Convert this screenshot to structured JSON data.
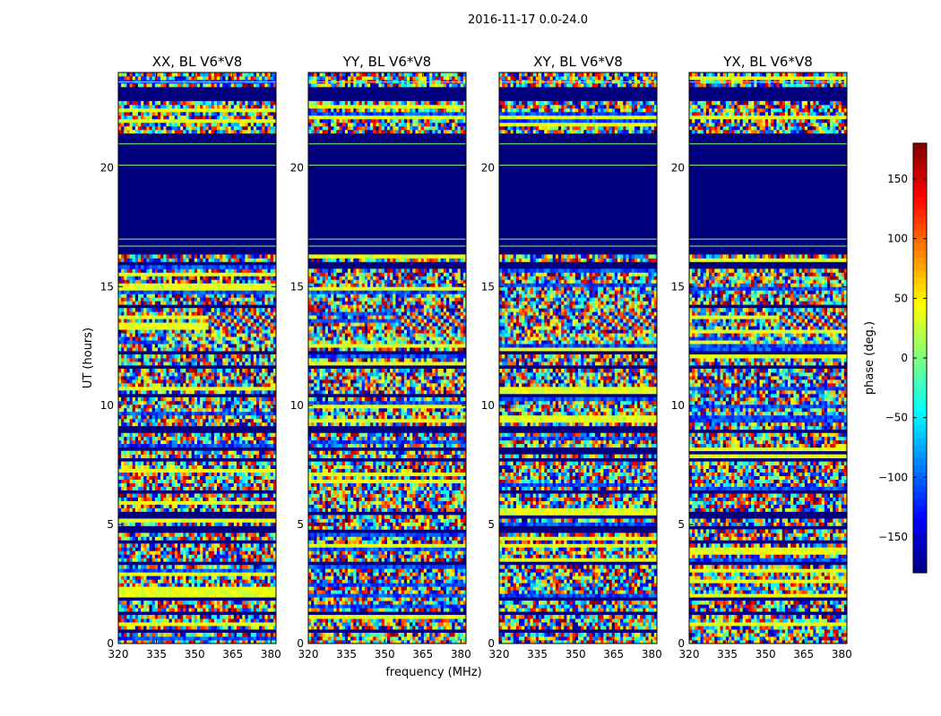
{
  "chart_data": {
    "type": "heatmap",
    "suptitle": "2016-11-17 0.0-24.0",
    "xlabel": "frequency (MHz)",
    "ylabel": "UT (hours)",
    "xlim": [
      320,
      382
    ],
    "ylim": [
      0,
      24
    ],
    "xticks": [
      320,
      335,
      350,
      365,
      380
    ],
    "yticks": [
      0,
      5,
      10,
      15,
      20
    ],
    "colorbar": {
      "label": "phase (deg.)",
      "range": [
        -180,
        180
      ],
      "ticks": [
        150,
        100,
        50,
        0,
        -50,
        -100,
        -150
      ],
      "tick_labels": [
        "150",
        "100",
        "50",
        "0",
        "−50",
        "−100",
        "−150"
      ],
      "colormap": "jet"
    },
    "panels": [
      {
        "title": "XX, BL V6*V8",
        "pol": "XX"
      },
      {
        "title": "YY, BL V6*V8",
        "pol": "YY"
      },
      {
        "title": "XY, BL V6*V8",
        "pol": "XY"
      },
      {
        "title": "YX, BL V6*V8",
        "pol": "YX"
      }
    ],
    "flagged_intervals_hours": [
      [
        16.4,
        21.5
      ],
      [
        22.8,
        23.4
      ]
    ],
    "faint_lines_hours": [
      17.0,
      16.7,
      20.1,
      21.0,
      23.6
    ],
    "dark_bands_hours": [
      15.9,
      14.2,
      12.2,
      11.6,
      10.4,
      9.0,
      8.1,
      7.7,
      6.4,
      5.4,
      4.8,
      4.3,
      3.4,
      1.9,
      1.3,
      0.5
    ],
    "fringe_features": [
      {
        "t0": 13.2,
        "t1": 13.9,
        "f0": 355,
        "f1": 382,
        "strength": "strong"
      },
      {
        "t0": 12.6,
        "t1": 13.1,
        "f0": 340,
        "f1": 382,
        "strength": "weak"
      }
    ],
    "sampling": {
      "n_time": 160,
      "n_freq": 56
    }
  }
}
